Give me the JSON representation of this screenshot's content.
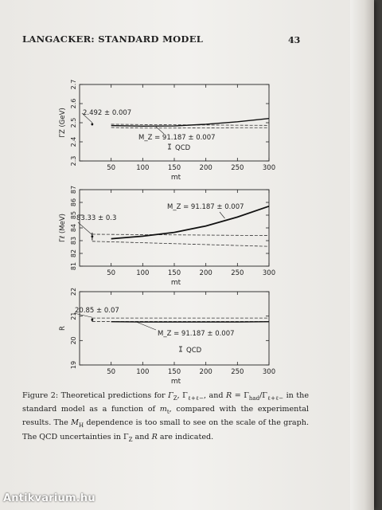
{
  "header": {
    "running_head": "LANGACKER: STANDARD MODEL",
    "page_number": "43"
  },
  "chart_data": [
    {
      "type": "line",
      "xlabel": "m_t",
      "ylabel": "Γ_Z (GeV)",
      "xlim": [
        0,
        300
      ],
      "ylim": [
        2.3,
        2.7
      ],
      "xticks": [
        50,
        100,
        150,
        200,
        250,
        300
      ],
      "yticks": [
        2.3,
        2.4,
        2.5,
        2.6,
        2.7
      ],
      "annotations": [
        "2.492 ± 0.007",
        "M_Z = 91.187 ± 0.007",
        "QCD"
      ],
      "theory_curve": {
        "x": [
          50,
          100,
          150,
          200,
          250,
          300
        ],
        "y": [
          2.485,
          2.482,
          2.483,
          2.492,
          2.505,
          2.522
        ]
      },
      "experiment": {
        "value": 2.492,
        "error": 0.007
      },
      "band_low": {
        "x": [
          50,
          100,
          150,
          200,
          250,
          300
        ],
        "y": [
          2.475,
          2.472,
          2.472,
          2.473,
          2.474,
          2.474
        ]
      },
      "band_high": {
        "x": [
          50,
          100,
          150,
          200,
          250,
          300
        ],
        "y": [
          2.492,
          2.49,
          2.489,
          2.488,
          2.487,
          2.486
        ]
      },
      "legend": "none"
    },
    {
      "type": "line",
      "xlabel": "m_t",
      "ylabel": "Γ_ℓ (MeV)",
      "xlim": [
        0,
        300
      ],
      "ylim": [
        81,
        87
      ],
      "xticks": [
        50,
        100,
        150,
        200,
        250,
        300
      ],
      "yticks": [
        81,
        82,
        83,
        84,
        85,
        86,
        87
      ],
      "annotations": [
        "83.33 ± 0.3",
        "M_Z = 91.187 ± 0.007"
      ],
      "theory_curve": {
        "x": [
          50,
          100,
          150,
          200,
          250,
          300
        ],
        "y": [
          83.15,
          83.35,
          83.65,
          84.15,
          84.85,
          85.7
        ]
      },
      "experiment": {
        "value": 83.33,
        "error": 0.3
      },
      "band_low": {
        "x": [
          20,
          300
        ],
        "y": [
          82.95,
          82.55
        ]
      },
      "band_high": {
        "x": [
          20,
          300
        ],
        "y": [
          83.5,
          83.4
        ]
      },
      "legend": "none"
    },
    {
      "type": "line",
      "xlabel": "m_t",
      "ylabel": "R",
      "xlim": [
        0,
        300
      ],
      "ylim": [
        19,
        22
      ],
      "xticks": [
        50,
        100,
        150,
        200,
        250,
        300
      ],
      "yticks": [
        19,
        20,
        21,
        22
      ],
      "annotations": [
        "20.85 ± 0.07",
        "M_Z = 91.187 ± 0.007",
        "QCD"
      ],
      "theory_curve": {
        "x": [
          50,
          100,
          150,
          200,
          250,
          300
        ],
        "y": [
          20.77,
          20.76,
          20.76,
          20.76,
          20.76,
          20.77
        ]
      },
      "experiment": {
        "value": 20.85,
        "error": 0.07
      },
      "band_low": {
        "x": [
          20,
          300
        ],
        "y": [
          20.78,
          20.78
        ]
      },
      "band_high": {
        "x": [
          20,
          300
        ],
        "y": [
          20.92,
          20.92
        ]
      },
      "legend": "none"
    }
  ],
  "caption": {
    "lead": "Figure 2: Theoretical predictions for ",
    "s1": "Γ",
    "s1sub": "Z",
    "s2": ", Γ",
    "s2sub": "ℓ+ℓ−",
    "s3": ", and ",
    "s4": "R",
    "s5": " = Γ",
    "s5sub": "had",
    "s6": "/Γ",
    "s6sub": "ℓ+ℓ−",
    "s7": " in the standard model as a function of ",
    "s8": "m",
    "s8sub": "t",
    "s9": ", compared with the experimental results. The ",
    "s10": "M",
    "s10sub": "H",
    "s11": " dependence is too small to see on the scale of the graph. The QCD uncertainties in Γ",
    "s11sub": "Z",
    "s12": " and ",
    "s13": "R",
    "s14": " are indicated."
  },
  "watermark": "Antikvarium.hu"
}
